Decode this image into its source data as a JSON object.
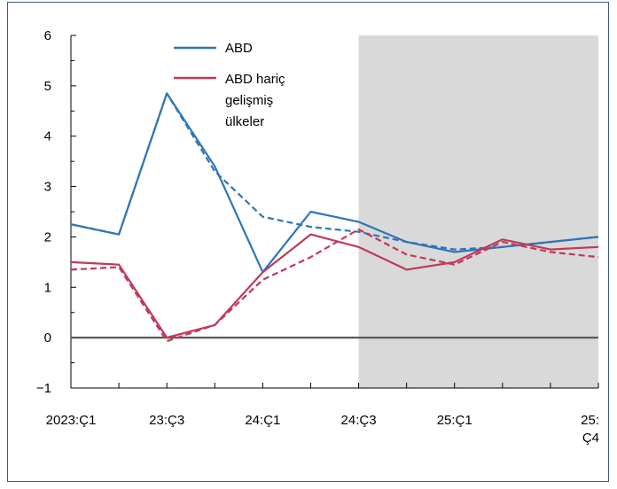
{
  "chart_data": {
    "type": "line",
    "title": "",
    "xlabel": "",
    "ylabel": "",
    "ylim": [
      -1,
      6
    ],
    "y_ticks": [
      "6",
      "5",
      "4",
      "3",
      "2",
      "1",
      "0",
      "−1"
    ],
    "x_periods": [
      "2023:Ç1",
      "2023:Ç2",
      "2023:Ç3",
      "2023:Ç4",
      "2024:Ç1",
      "2024:Ç2",
      "2024:Ç3",
      "2024:Ç4",
      "2025:Ç1",
      "2025:Ç2",
      "2025:Ç3",
      "2025:Ç4"
    ],
    "x_tick_labels": [
      {
        "period_index": 0,
        "lines": [
          "2023:Ç1"
        ]
      },
      {
        "period_index": 2,
        "lines": [
          "23:Ç3"
        ]
      },
      {
        "period_index": 4,
        "lines": [
          "24:Ç1"
        ]
      },
      {
        "period_index": 6,
        "lines": [
          "24:Ç3"
        ]
      },
      {
        "period_index": 8,
        "lines": [
          "25:Ç1"
        ]
      },
      {
        "period_index": 11,
        "lines": [
          "25:",
          "Ç4"
        ]
      }
    ],
    "shaded_region": {
      "from_period_index": 6,
      "to_period_index": 11,
      "color": "#d9d9d9"
    },
    "zero_line": true,
    "series": [
      {
        "name": "ABD",
        "style": "solid",
        "color": "#2e75b6",
        "values": [
          2.25,
          2.05,
          4.85,
          3.4,
          1.3,
          2.5,
          2.3,
          1.9,
          1.7,
          1.8,
          1.9,
          2.0
        ]
      },
      {
        "name": "",
        "style": "dashed",
        "color": "#2e75b6",
        "values": [
          2.25,
          2.05,
          4.85,
          3.3,
          2.4,
          2.2,
          2.1,
          1.9,
          1.75,
          1.8,
          1.9,
          2.0
        ]
      },
      {
        "name": "ABD hariç gelişmiş ülkeler",
        "legend_lines": [
          "ABD hariç",
          "gelişmiş",
          "ülkeler"
        ],
        "style": "solid",
        "color": "#c0395b",
        "values": [
          1.5,
          1.45,
          0.0,
          0.25,
          1.3,
          2.05,
          1.8,
          1.35,
          1.5,
          1.95,
          1.75,
          1.8
        ]
      },
      {
        "name": "",
        "style": "dashed",
        "color": "#c0395b",
        "values": [
          1.35,
          1.4,
          -0.07,
          0.25,
          1.15,
          1.6,
          2.15,
          1.65,
          1.45,
          1.9,
          1.7,
          1.6
        ]
      }
    ],
    "legend_position": "top-center"
  }
}
